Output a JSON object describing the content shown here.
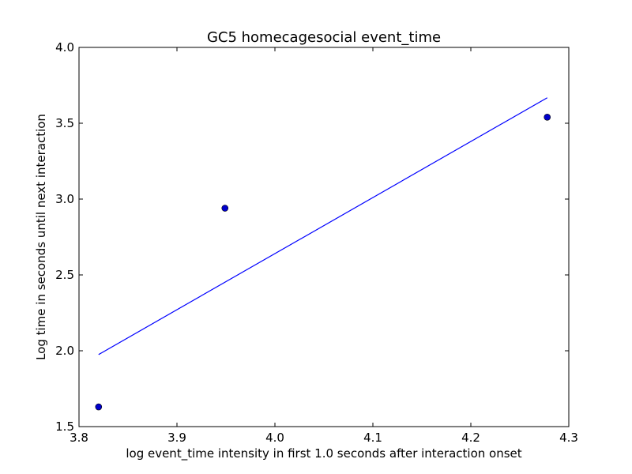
{
  "chart_data": {
    "type": "scatter",
    "title": "GC5 homecagesocial event_time",
    "xlabel": "log event_time intensity in first 1.0 seconds after interaction onset",
    "ylabel": "Log time in seconds until next interaction",
    "xlim": [
      3.8,
      4.3
    ],
    "ylim": [
      1.5,
      4.0
    ],
    "xticks": [
      3.8,
      3.9,
      4.0,
      4.1,
      4.2,
      4.3
    ],
    "xtick_labels": [
      "3.8",
      "3.9",
      "4.0",
      "4.1",
      "4.2",
      "4.3"
    ],
    "yticks": [
      1.5,
      2.0,
      2.5,
      3.0,
      3.5,
      4.0
    ],
    "ytick_labels": [
      "1.5",
      "2.0",
      "2.5",
      "3.0",
      "3.5",
      "4.0"
    ],
    "grid": false,
    "series": [
      {
        "kind": "scatter",
        "color": "#0000cc",
        "x": [
          3.82,
          3.949,
          4.278
        ],
        "y": [
          1.63,
          2.94,
          3.54
        ]
      },
      {
        "kind": "line",
        "color": "#0000ff",
        "x": [
          3.82,
          4.278
        ],
        "y": [
          1.975,
          3.668
        ]
      }
    ]
  }
}
